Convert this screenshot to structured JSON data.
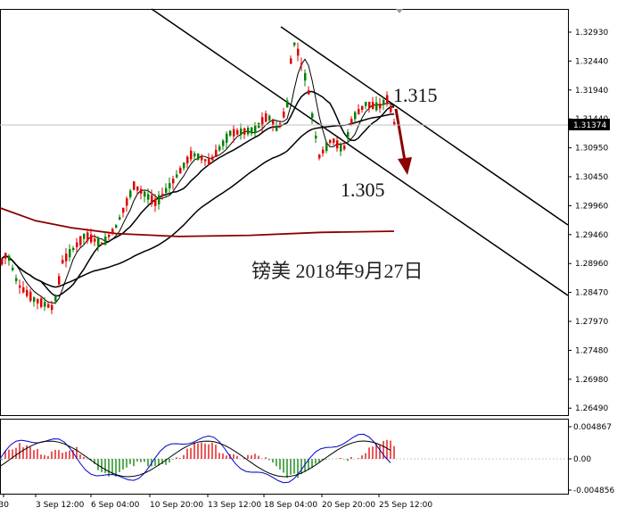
{
  "chart_data": {
    "type": "candlestick",
    "price_ticks": [
      "1.32930",
      "1.32440",
      "1.31940",
      "1.31440",
      "1.30950",
      "1.30450",
      "1.29960",
      "1.29460",
      "1.28960",
      "1.28470",
      "1.27970",
      "1.27480",
      "1.26980",
      "1.26490"
    ],
    "current_price": "1.31374",
    "osc_ticks": [
      "0.004867",
      "0.00",
      "-0.004856"
    ],
    "time_ticks": [
      "30",
      "3 Sep 12:00",
      "6 Sep 04:00",
      "10 Sep 20:00",
      "13 Sep 12:00",
      "18 Sep 04:00",
      "20 Sep 20:00",
      "25 Sep 12:00"
    ],
    "annotations": {
      "resistance_level": "1.315",
      "target_level": "1.305",
      "caption": "镑美 2018年9月27日"
    },
    "colors": {
      "bull_candle": "#e00000",
      "bear_candle": "#008000",
      "moving_average": "#000000",
      "long_moving_average": "#8b0000",
      "arrow": "#8b0000",
      "histogram_positive": "#e00000",
      "histogram_negative": "#008000",
      "signal_line": "#0000cc"
    }
  }
}
